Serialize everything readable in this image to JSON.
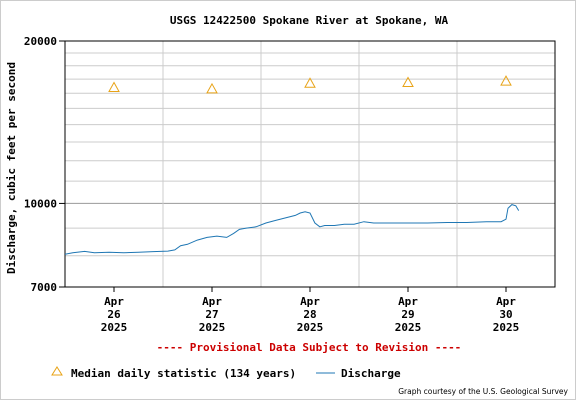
{
  "chart_data": {
    "type": "line",
    "title": "USGS 12422500 Spokane River at Spokane, WA",
    "xlabel": "",
    "ylabel": "Discharge, cubic feet per second",
    "y_scale": "log",
    "ylim": [
      7000,
      20000
    ],
    "y_ticks": [
      "20000",
      "10000",
      "7000"
    ],
    "y_tick_values": [
      20000,
      10000,
      7000
    ],
    "x_range_days": [
      0,
      5
    ],
    "x_ticks": [
      {
        "day": 0.5,
        "month": "Apr",
        "date": "26",
        "year": "2025"
      },
      {
        "day": 1.5,
        "month": "Apr",
        "date": "27",
        "year": "2025"
      },
      {
        "day": 2.5,
        "month": "Apr",
        "date": "28",
        "year": "2025"
      },
      {
        "day": 3.5,
        "month": "Apr",
        "date": "29",
        "year": "2025"
      },
      {
        "day": 4.5,
        "month": "Apr",
        "date": "30",
        "year": "2025"
      }
    ],
    "grid": true,
    "colors": {
      "discharge": "#1f77b4",
      "median": "#e8a317",
      "grid": "#cccccc",
      "provisional": "#cc0000"
    },
    "series": [
      {
        "name": "Median daily statistic (134 years)",
        "marker": "triangle",
        "x": [
          0.5,
          1.5,
          2.5,
          3.5,
          4.5
        ],
        "values": [
          16400,
          16300,
          16700,
          16750,
          16850
        ]
      },
      {
        "name": "Discharge",
        "marker": "line",
        "x": [
          0.0,
          0.08,
          0.2,
          0.3,
          0.45,
          0.6,
          0.75,
          0.9,
          1.05,
          1.12,
          1.18,
          1.25,
          1.35,
          1.45,
          1.55,
          1.65,
          1.72,
          1.78,
          1.85,
          1.95,
          2.05,
          2.15,
          2.25,
          2.35,
          2.4,
          2.45,
          2.5,
          2.55,
          2.6,
          2.65,
          2.75,
          2.85,
          2.95,
          3.05,
          3.15,
          3.3,
          3.5,
          3.7,
          3.9,
          4.1,
          4.3,
          4.45,
          4.5,
          4.52,
          4.56,
          4.6,
          4.63
        ],
        "values": [
          8050,
          8100,
          8150,
          8100,
          8120,
          8100,
          8120,
          8140,
          8160,
          8200,
          8350,
          8400,
          8550,
          8650,
          8700,
          8650,
          8800,
          8950,
          9000,
          9050,
          9200,
          9300,
          9400,
          9500,
          9600,
          9650,
          9600,
          9200,
          9050,
          9100,
          9100,
          9150,
          9150,
          9250,
          9200,
          9200,
          9200,
          9200,
          9220,
          9220,
          9250,
          9250,
          9350,
          9800,
          9950,
          9900,
          9700
        ]
      }
    ],
    "notice": "---- Provisional Data Subject to Revision ----",
    "credit": "Graph courtesy of the U.S. Geological Survey"
  }
}
